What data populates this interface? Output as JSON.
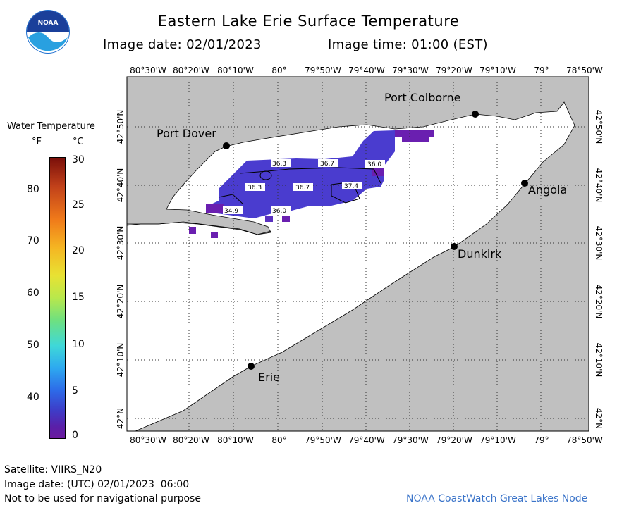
{
  "header": {
    "title": "Eastern Lake Erie Surface Temperature",
    "image_date": "Image date: 02/01/2023",
    "image_time": "Image time: 01:00 (EST)"
  },
  "legend": {
    "title": "Water Temperature",
    "unit_f": "°F",
    "unit_c": "°C",
    "f_ticks": [
      "80",
      "70",
      "60",
      "50",
      "40"
    ],
    "c_ticks": [
      "30",
      "25",
      "20",
      "15",
      "10",
      "5",
      "0"
    ]
  },
  "axes": {
    "lon_labels": [
      "80°30'W",
      "80°20'W",
      "80°10'W",
      "80°",
      "79°50'W",
      "79°40'W",
      "79°30'W",
      "79°20'W",
      "79°10'W",
      "79°",
      "78°50'W"
    ],
    "lat_labels": [
      "42°50'N",
      "42°40'N",
      "42°30'N",
      "42°20'N",
      "42°10'N",
      "42°N"
    ]
  },
  "places": [
    {
      "name": "Port Colborne"
    },
    {
      "name": "Port Dover"
    },
    {
      "name": "Angola"
    },
    {
      "name": "Dunkirk"
    },
    {
      "name": "Erie"
    }
  ],
  "temp_labels": [
    "36.3",
    "36.7",
    "36.0",
    "36.3",
    "36.7",
    "37.4",
    "34.9",
    "36.0"
  ],
  "footer": {
    "satellite": "Satellite: VIIRS_N20",
    "utc_date": "Image date: (UTC) 02/01/2023  06:00",
    "disclaimer": "Not to be used for navigational purpose",
    "credit": "NOAA CoastWatch Great Lakes Node"
  },
  "colors": {
    "land": "#c0c0c0",
    "water_no_data": "#ffffff",
    "water_temp": "#4a3ccf",
    "water_cold": "#6a1fb0",
    "grid": "#333333"
  }
}
